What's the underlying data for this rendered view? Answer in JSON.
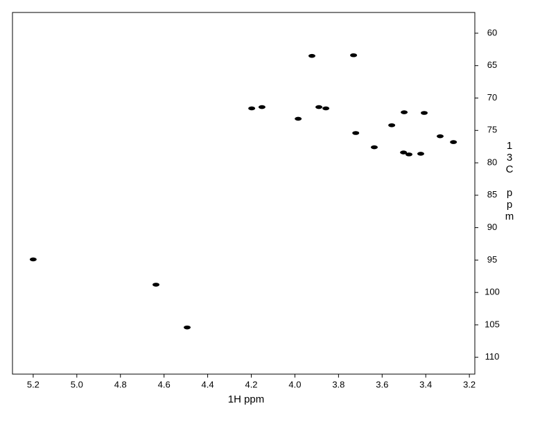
{
  "chart_data": {
    "type": "scatter",
    "x_label": "1H ppm",
    "y_label": "13C ppm",
    "xlim": [
      5.295,
      3.175
    ],
    "ylim": [
      56.8,
      112.6
    ],
    "xticks": [
      {
        "value": 5.2,
        "label": "5.2"
      },
      {
        "value": 5.0,
        "label": "5.0"
      },
      {
        "value": 4.8,
        "label": "4.8"
      },
      {
        "value": 4.6,
        "label": "4.6"
      },
      {
        "value": 4.4,
        "label": "4.4"
      },
      {
        "value": 4.2,
        "label": "4.2"
      },
      {
        "value": 4.0,
        "label": "4.0"
      },
      {
        "value": 3.8,
        "label": "3.8"
      },
      {
        "value": 3.6,
        "label": "3.6"
      },
      {
        "value": 3.4,
        "label": "3.4"
      },
      {
        "value": 3.2,
        "label": "3.2"
      }
    ],
    "yticks": [
      60,
      65,
      70,
      75,
      80,
      85,
      90,
      95,
      100,
      105,
      110
    ],
    "color": "#000000",
    "x": [
      5.2,
      4.637,
      4.494,
      4.198,
      4.151,
      3.985,
      3.922,
      3.731,
      3.89,
      3.858,
      3.721,
      3.636,
      3.556,
      3.499,
      3.407,
      3.502,
      3.477,
      3.423,
      3.334,
      3.273
    ],
    "values": [
      94.9,
      98.8,
      105.4,
      71.6,
      71.4,
      73.2,
      63.5,
      63.4,
      71.4,
      71.6,
      75.4,
      77.6,
      74.2,
      72.2,
      72.3,
      78.4,
      78.7,
      78.6,
      75.9,
      76.8
    ]
  }
}
